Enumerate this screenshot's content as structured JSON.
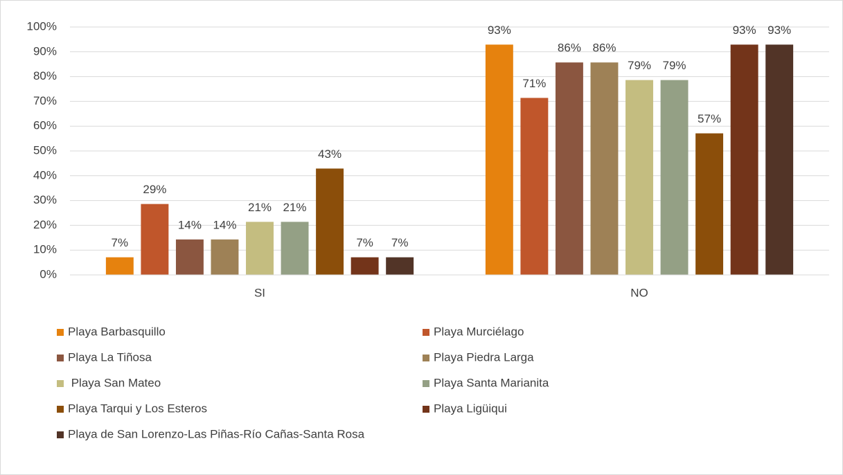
{
  "chart_data": {
    "type": "bar",
    "categories": [
      "SI",
      "NO"
    ],
    "series": [
      {
        "name": "Playa Barbasquillo",
        "color": "#E6820E",
        "values": [
          7.1,
          92.9
        ],
        "value_labels": [
          "7%",
          "93%"
        ]
      },
      {
        "name": "Playa Murciélago",
        "color": "#C0562B",
        "values": [
          28.6,
          71.4
        ],
        "value_labels": [
          "29%",
          "71%"
        ]
      },
      {
        "name": "Playa La Tiñosa",
        "color": "#8B5640",
        "values": [
          14.3,
          85.7
        ],
        "value_labels": [
          "14%",
          "86%"
        ]
      },
      {
        "name": "Playa Piedra Larga",
        "color": "#9E8156",
        "values": [
          14.3,
          85.7
        ],
        "value_labels": [
          "14%",
          "86%"
        ]
      },
      {
        "name": " Playa San Mateo",
        "color": "#C4BD80",
        "values": [
          21.4,
          78.6
        ],
        "value_labels": [
          "21%",
          "79%"
        ]
      },
      {
        "name": "Playa Santa Marianita",
        "color": "#94A085",
        "values": [
          21.4,
          78.6
        ],
        "value_labels": [
          "21%",
          "79%"
        ]
      },
      {
        "name": "Playa Tarqui y Los Esteros",
        "color": "#8B4E0A",
        "values": [
          42.9,
          57.1
        ],
        "value_labels": [
          "43%",
          "57%"
        ]
      },
      {
        "name": "Playa Ligüiqui",
        "color": "#73341A",
        "values": [
          7.1,
          92.9
        ],
        "value_labels": [
          "7%",
          "93%"
        ]
      },
      {
        "name": "Playa de San Lorenzo-Las Piñas-Río Cañas-Santa Rosa",
        "color": "#523427",
        "values": [
          7.1,
          92.9
        ],
        "value_labels": [
          "7%",
          "93%"
        ]
      }
    ],
    "ylim": [
      0,
      100
    ],
    "yticks": [
      {
        "value": 0,
        "label": "0%"
      },
      {
        "value": 10,
        "label": "10%"
      },
      {
        "value": 20,
        "label": "20%"
      },
      {
        "value": 30,
        "label": "30%"
      },
      {
        "value": 40,
        "label": "40%"
      },
      {
        "value": 50,
        "label": "50%"
      },
      {
        "value": 60,
        "label": "60%"
      },
      {
        "value": 70,
        "label": "70%"
      },
      {
        "value": 80,
        "label": "80%"
      },
      {
        "value": 90,
        "label": "90%"
      },
      {
        "value": 100,
        "label": "100%"
      }
    ],
    "grid": true,
    "legend": "bottom"
  }
}
